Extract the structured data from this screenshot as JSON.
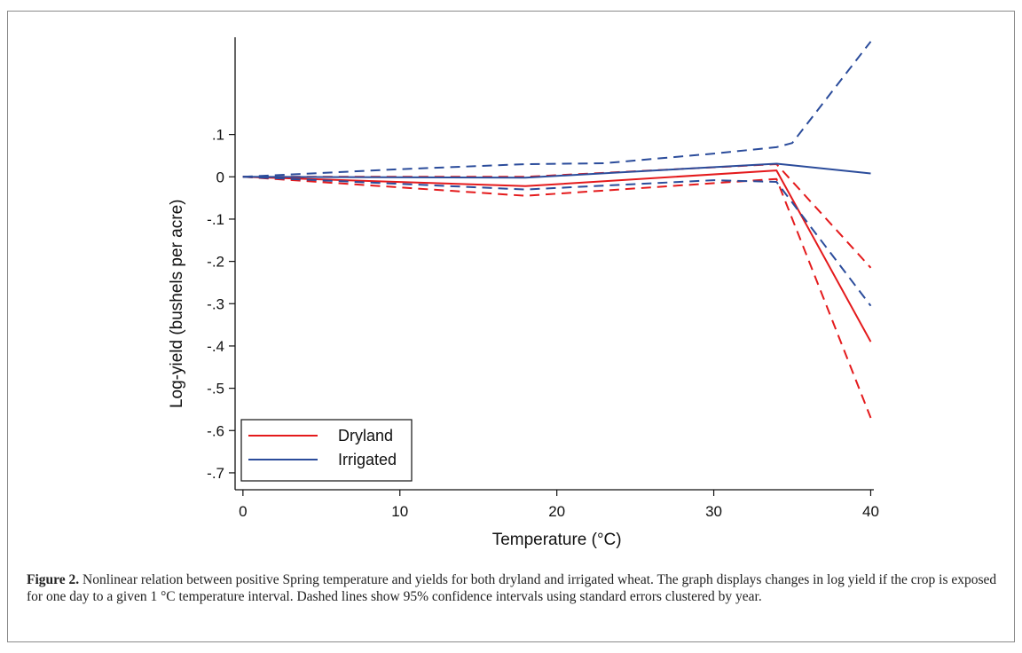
{
  "figure": {
    "label": "Figure 2.",
    "caption": "Nonlinear relation between positive Spring temperature and yields for both dryland and irrigated wheat. The graph displays changes in log yield if the crop is exposed for one day to a given 1 °C temperature interval. Dashed lines show 95% confidence intervals using standard errors clustered by year."
  },
  "chart_data": {
    "type": "line",
    "title": "",
    "xlabel": "Temperature (°C)",
    "ylabel": "Log-yield (bushels per acre)",
    "xlim": [
      -0.5,
      40.2
    ],
    "ylim": [
      -0.74,
      0.33
    ],
    "x_ticks": [
      0,
      10,
      20,
      30,
      40
    ],
    "x_tick_labels": [
      "0",
      "10",
      "20",
      "30",
      "40"
    ],
    "y_ticks": [
      0.1,
      0,
      -0.1,
      -0.2,
      -0.3,
      -0.4,
      -0.5,
      -0.6,
      -0.7
    ],
    "y_tick_labels": [
      ".1",
      "0",
      "-.1",
      "-.2",
      "-.3",
      "-.4",
      "-.5",
      "-.6",
      "-.7"
    ],
    "grid": false,
    "legend": {
      "placement": "bottom-left",
      "entries": [
        "Dryland",
        "Irrigated"
      ]
    },
    "colors": {
      "Dryland": "#e41a1c",
      "Irrigated": "#2b4c9b"
    },
    "series": [
      {
        "name": "Dryland",
        "style": "solid",
        "points": [
          [
            0,
            0
          ],
          [
            18,
            -0.022
          ],
          [
            34,
            0.015
          ],
          [
            40,
            -0.39
          ]
        ]
      },
      {
        "name": "Dryland",
        "band": "upper",
        "style": "dashed",
        "points": [
          [
            0,
            0
          ],
          [
            18,
            0.0
          ],
          [
            34,
            0.03
          ],
          [
            40,
            -0.215
          ]
        ]
      },
      {
        "name": "Dryland",
        "band": "lower",
        "style": "dashed",
        "points": [
          [
            0,
            0
          ],
          [
            18,
            -0.045
          ],
          [
            34,
            -0.005
          ],
          [
            40,
            -0.57
          ]
        ]
      },
      {
        "name": "Irrigated",
        "style": "solid",
        "points": [
          [
            0,
            0
          ],
          [
            18,
            -0.002
          ],
          [
            34,
            0.031
          ],
          [
            40,
            0.008
          ]
        ]
      },
      {
        "name": "Irrigated",
        "band": "upper",
        "style": "dashed",
        "points": [
          [
            0,
            0
          ],
          [
            10,
            0.018
          ],
          [
            18,
            0.03
          ],
          [
            23,
            0.032
          ],
          [
            30,
            0.055
          ],
          [
            34,
            0.07
          ],
          [
            35,
            0.08
          ],
          [
            40,
            0.32
          ]
        ]
      },
      {
        "name": "Irrigated",
        "band": "lower",
        "style": "dashed",
        "points": [
          [
            0,
            0
          ],
          [
            18,
            -0.03
          ],
          [
            30,
            -0.008
          ],
          [
            34,
            -0.012
          ],
          [
            40,
            -0.305
          ]
        ]
      }
    ]
  }
}
